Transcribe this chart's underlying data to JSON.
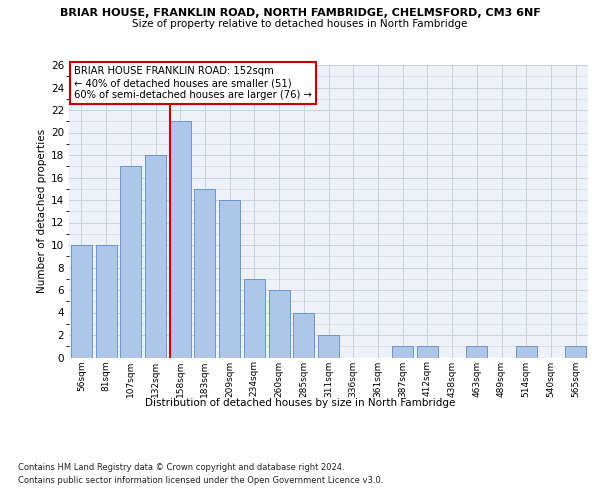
{
  "title": "BRIAR HOUSE, FRANKLIN ROAD, NORTH FAMBRIDGE, CHELMSFORD, CM3 6NF",
  "subtitle": "Size of property relative to detached houses in North Fambridge",
  "xlabel": "Distribution of detached houses by size in North Fambridge",
  "ylabel": "Number of detached properties",
  "bar_labels": [
    "56sqm",
    "81sqm",
    "107sqm",
    "132sqm",
    "158sqm",
    "183sqm",
    "209sqm",
    "234sqm",
    "260sqm",
    "285sqm",
    "311sqm",
    "336sqm",
    "361sqm",
    "387sqm",
    "412sqm",
    "438sqm",
    "463sqm",
    "489sqm",
    "514sqm",
    "540sqm",
    "565sqm"
  ],
  "bar_values": [
    10,
    10,
    17,
    18,
    21,
    15,
    14,
    7,
    6,
    4,
    2,
    0,
    0,
    1,
    1,
    0,
    1,
    0,
    1,
    0,
    1
  ],
  "bar_color": "#aec6e8",
  "bar_edge_color": "#5a8fc4",
  "vline_color": "#cc0000",
  "vline_x_index": 4,
  "annotation_text": "BRIAR HOUSE FRANKLIN ROAD: 152sqm\n← 40% of detached houses are smaller (51)\n60% of semi-detached houses are larger (76) →",
  "annotation_box_edge": "#cc0000",
  "ylim": [
    0,
    26
  ],
  "yticks": [
    0,
    2,
    4,
    6,
    8,
    10,
    12,
    14,
    16,
    18,
    20,
    22,
    24,
    26
  ],
  "footer1": "Contains HM Land Registry data © Crown copyright and database right 2024.",
  "footer2": "Contains public sector information licensed under the Open Government Licence v3.0.",
  "bg_color": "#eef2f8",
  "grid_color": "#c8d0dc"
}
